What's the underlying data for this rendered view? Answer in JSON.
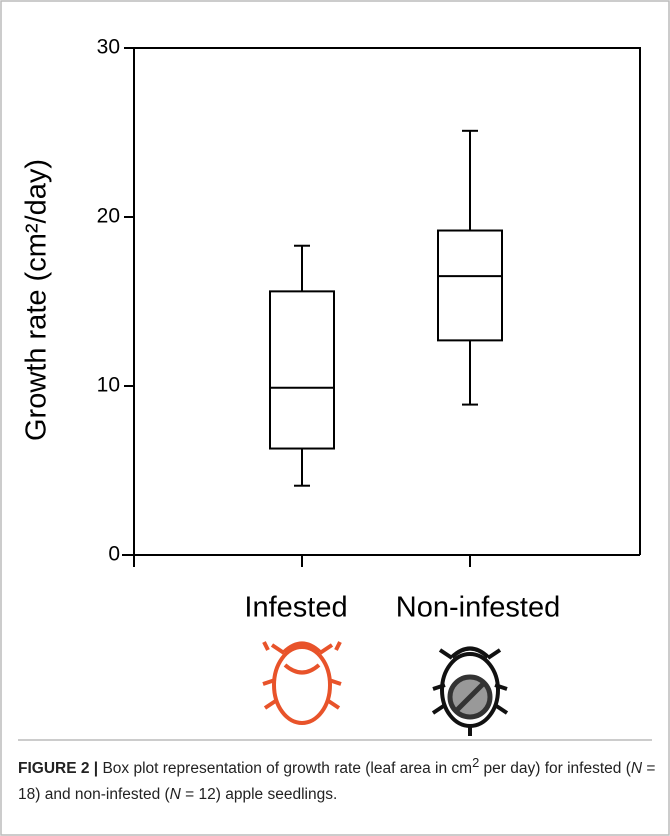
{
  "chart_data": {
    "type": "box",
    "y_label": "Growth rate (cm²/day)",
    "categories": [
      "Infested",
      "Non-infested"
    ],
    "boxes": [
      {
        "min": 4.1,
        "q1": 6.3,
        "median": 9.9,
        "q3": 15.6,
        "max": 18.3
      },
      {
        "min": 8.9,
        "q1": 12.7,
        "median": 16.5,
        "q3": 19.2,
        "max": 25.1
      }
    ],
    "color": "#000000",
    "ylim": [
      0,
      30
    ],
    "yticks": [
      0,
      10,
      20,
      30
    ]
  },
  "caption": {
    "label": "FIGURE 2 |",
    "parts": [
      "Box plot representation of growth rate (leaf area in cm",
      "2",
      " per day) for infested (",
      "N",
      " = 18) and non-infested (",
      "N",
      " = 12) apple seedlings."
    ]
  }
}
